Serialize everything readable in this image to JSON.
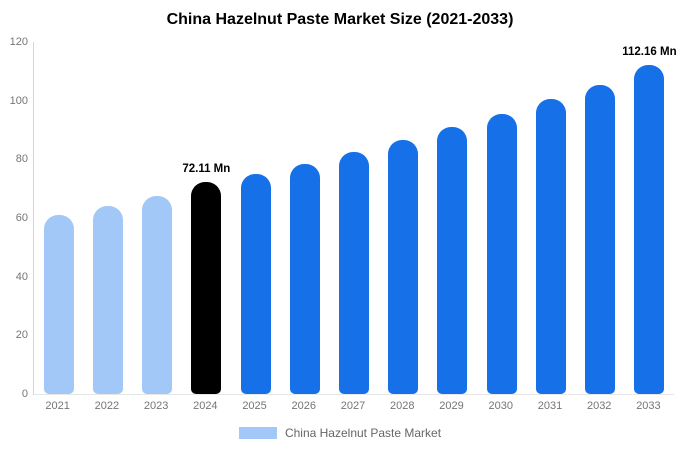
{
  "title": "China Hazelnut Paste Market Size (2021-2033)",
  "legend": {
    "label": "China Hazelnut Paste Market",
    "swatch_color": "#a1c8f7"
  },
  "colors": {
    "historical_bar": "#a1c8f7",
    "highlight_bar": "#000000",
    "forecast_bar": "#1670e8",
    "axis_text": "#757575",
    "axis_line": "#d6d6d6"
  },
  "chart_data": {
    "type": "bar",
    "title": "China Hazelnut Paste Market Size (2021-2033)",
    "categories": [
      "2021",
      "2022",
      "2023",
      "2024",
      "2025",
      "2026",
      "2027",
      "2028",
      "2029",
      "2030",
      "2031",
      "2032",
      "2033"
    ],
    "values": [
      61,
      64,
      67.5,
      72.11,
      75,
      78.5,
      82.5,
      86.5,
      91,
      95.5,
      100.5,
      105.5,
      112.16
    ],
    "unit": "Mn",
    "xlabel": "",
    "ylabel": "",
    "ylim": [
      0,
      120
    ],
    "y_ticks": [
      0,
      20,
      40,
      60,
      80,
      100,
      120
    ],
    "grid": false,
    "legend_position": "bottom",
    "bar_colors": [
      "#a1c8f7",
      "#a1c8f7",
      "#a1c8f7",
      "#000000",
      "#1670e8",
      "#1670e8",
      "#1670e8",
      "#1670e8",
      "#1670e8",
      "#1670e8",
      "#1670e8",
      "#1670e8",
      "#1670e8"
    ],
    "annotations": [
      {
        "category": "2024",
        "text": "72.11 Mn"
      },
      {
        "category": "2033",
        "text": "112.16 Mn"
      }
    ]
  }
}
